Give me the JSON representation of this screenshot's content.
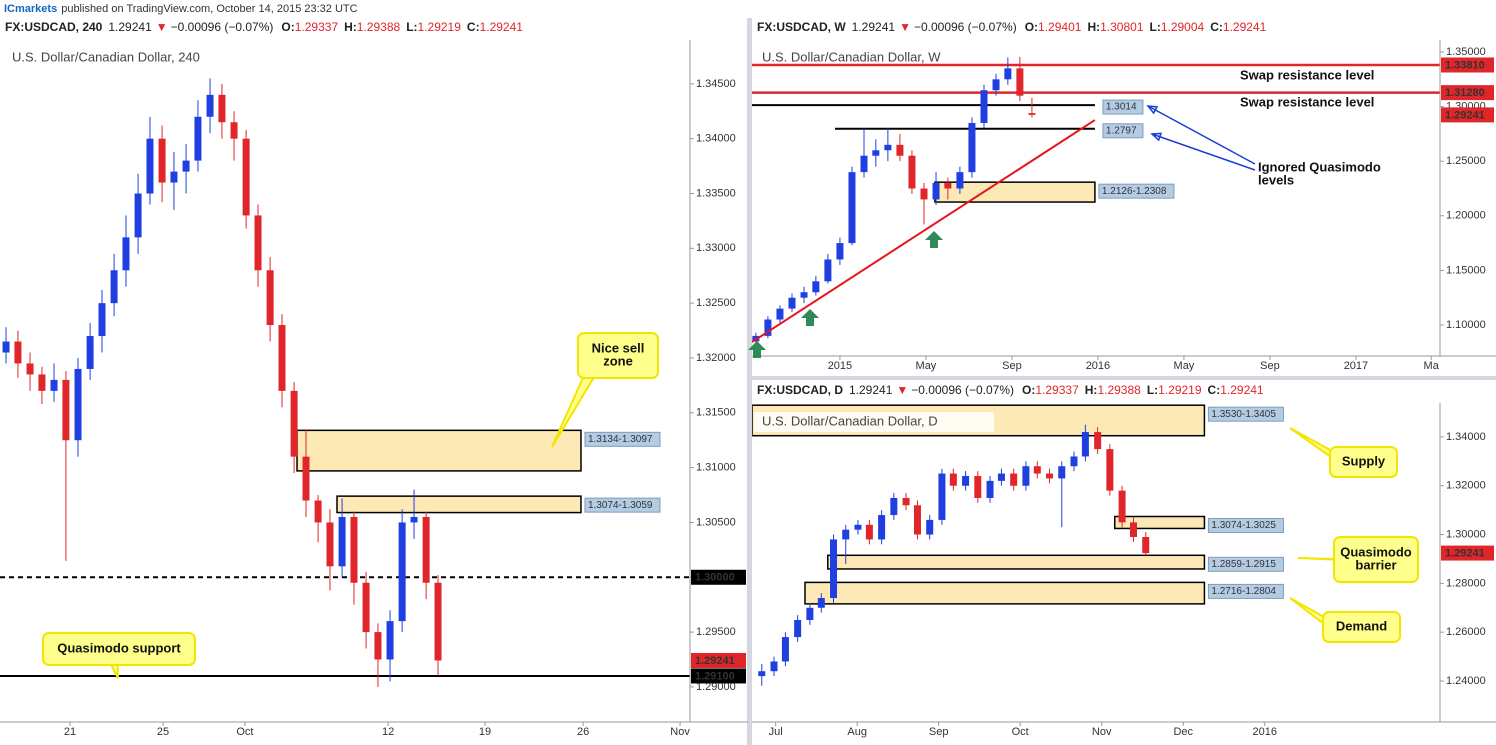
{
  "header": {
    "publisher": "ICmarkets",
    "text": "published on TradingView.com, October 14, 2015 23:32 UTC"
  },
  "chart_data": [
    {
      "type": "candlestick",
      "title": "U.S. Dollar/Canadian Dollar, 240",
      "symbol": "FX:USDCAD, 240",
      "last": "1.29241",
      "change_arrow": "▼",
      "change": "−0.00096 (−0.07%)",
      "ohlc_labels": [
        "O:",
        "H:",
        "L:",
        "C:"
      ],
      "ohlc_values": [
        "1.29337",
        "1.29388",
        "1.29219",
        "1.29241"
      ],
      "up_color": "#1f3fe0",
      "down_color": "#e0262a",
      "x": [
        0.31,
        0.92,
        1.54,
        2.15,
        2.77,
        3.38,
        4.0,
        4.62,
        5.23,
        5.85,
        6.46,
        7.08,
        7.69,
        8.31,
        8.92,
        9.54,
        10.15,
        10.77,
        11.38,
        12.0,
        12.62,
        13.23,
        13.85,
        14.46,
        15.08,
        15.69,
        16.31,
        16.92,
        17.54,
        18.15,
        18.77,
        19.38,
        20.0,
        20.62,
        21.23,
        21.85,
        22.46
      ],
      "open": [
        1.3205,
        1.3215,
        1.3195,
        1.3185,
        1.317,
        1.318,
        1.3125,
        1.319,
        1.322,
        1.325,
        1.328,
        1.331,
        1.335,
        1.34,
        1.336,
        1.337,
        1.338,
        1.342,
        1.344,
        1.3415,
        1.34,
        1.333,
        1.328,
        1.323,
        1.317,
        1.311,
        1.307,
        1.305,
        1.301,
        1.3055,
        1.2995,
        1.295,
        1.2925,
        1.296,
        1.305,
        1.3055,
        1.2995
      ],
      "high": [
        1.3228,
        1.3225,
        1.3205,
        1.3192,
        1.3195,
        1.3188,
        1.32,
        1.3232,
        1.3262,
        1.3295,
        1.333,
        1.3368,
        1.342,
        1.3412,
        1.3388,
        1.3395,
        1.3435,
        1.3455,
        1.345,
        1.3425,
        1.3408,
        1.334,
        1.3292,
        1.324,
        1.3178,
        1.3135,
        1.3075,
        1.3062,
        1.3072,
        1.306,
        1.3005,
        1.2958,
        1.297,
        1.3062,
        1.308,
        1.306,
        1.3002
      ],
      "low": [
        1.3195,
        1.3182,
        1.317,
        1.3158,
        1.316,
        1.3015,
        1.311,
        1.318,
        1.3205,
        1.3238,
        1.3265,
        1.3295,
        1.334,
        1.3342,
        1.3335,
        1.335,
        1.337,
        1.3405,
        1.34,
        1.338,
        1.3318,
        1.3265,
        1.3215,
        1.3155,
        1.3095,
        1.3055,
        1.3032,
        1.2988,
        1.3,
        1.2975,
        1.2935,
        1.29,
        1.2905,
        1.295,
        1.3035,
        1.298,
        1.291
      ],
      "close": [
        1.3215,
        1.3195,
        1.3185,
        1.317,
        1.318,
        1.3125,
        1.319,
        1.322,
        1.325,
        1.328,
        1.331,
        1.335,
        1.34,
        1.336,
        1.337,
        1.338,
        1.342,
        1.344,
        1.3415,
        1.34,
        1.333,
        1.328,
        1.323,
        1.317,
        1.311,
        1.307,
        1.305,
        1.301,
        1.3055,
        1.2995,
        1.295,
        1.2925,
        1.296,
        1.305,
        1.3055,
        1.2995,
        1.29241
      ],
      "xlim": [
        0,
        35.38
      ],
      "xticks": [
        {
          "value": 3.59,
          "label": "21"
        },
        {
          "value": 8.36,
          "label": "25"
        },
        {
          "value": 12.56,
          "label": "Oct"
        },
        {
          "value": 19.9,
          "label": "12"
        },
        {
          "value": 24.87,
          "label": "19"
        },
        {
          "value": 29.9,
          "label": "26"
        },
        {
          "value": 34.87,
          "label": "Nov"
        }
      ],
      "ylim": [
        1.2868,
        1.349
      ],
      "yticks": [
        {
          "value": 1.345,
          "label": "1.34500"
        },
        {
          "value": 1.34,
          "label": "1.34000"
        },
        {
          "value": 1.335,
          "label": "1.33500"
        },
        {
          "value": 1.33,
          "label": "1.33000"
        },
        {
          "value": 1.325,
          "label": "1.32500"
        },
        {
          "value": 1.32,
          "label": "1.32000"
        },
        {
          "value": 1.315,
          "label": "1.31500"
        },
        {
          "value": 1.31,
          "label": "1.31000"
        },
        {
          "value": 1.305,
          "label": "1.30500"
        },
        {
          "value": 1.3,
          "label": "1.30000"
        },
        {
          "value": 1.295,
          "label": "1.29500"
        },
        {
          "value": 1.29,
          "label": "1.29000"
        }
      ],
      "grid": false,
      "zones": [
        {
          "high": 1.3134,
          "low": 1.3097,
          "x": [
            15.23,
            29.79
          ],
          "label": "1.3134-1.3097"
        },
        {
          "high": 1.3074,
          "low": 1.3059,
          "x": [
            17.28,
            29.79
          ],
          "label": "1.3074-1.3059"
        }
      ],
      "lines": [
        {
          "value": 1.3,
          "color": "#000000",
          "dashed": true
        },
        {
          "value": 1.291,
          "color": "#000000",
          "dashed": false
        }
      ],
      "price_tags": [
        {
          "value": 1.3,
          "label": "1.30000",
          "color": "#000000"
        },
        {
          "value": 1.29241,
          "label": "1.29241",
          "color": "#e0262a"
        },
        {
          "value": 1.291,
          "label": "1.29100",
          "color": "#000000"
        }
      ],
      "annotations": [
        {
          "style": "callout",
          "lines": [
            "Nice sell",
            "zone"
          ]
        },
        {
          "style": "callout",
          "lines": [
            "Quasimodo support"
          ]
        }
      ]
    },
    {
      "type": "candlestick",
      "title": "U.S. Dollar/Canadian Dollar, W",
      "symbol": "FX:USDCAD, W",
      "last": "1.29241",
      "change_arrow": "▼",
      "change": "−0.00096 (−0.07%)",
      "ohlc_labels": [
        "O:",
        "H:",
        "L:",
        "C:"
      ],
      "ohlc_values": [
        "1.29401",
        "1.30801",
        "1.29004",
        "1.29241"
      ],
      "up_color": "#1f3fe0",
      "down_color": "#e0262a",
      "x": [
        -3.91,
        -3.35,
        -2.79,
        -2.23,
        -1.67,
        -1.12,
        -0.56,
        0,
        0.56,
        1.12,
        1.67,
        2.23,
        2.79,
        3.35,
        3.91,
        4.47,
        5.02,
        5.58,
        6.14,
        6.7,
        7.26,
        7.81,
        8.37,
        8.93
      ],
      "open": [
        1.085,
        1.09,
        1.105,
        1.115,
        1.125,
        1.13,
        1.14,
        1.16,
        1.175,
        1.24,
        1.255,
        1.26,
        1.265,
        1.255,
        1.225,
        1.215,
        1.23,
        1.225,
        1.24,
        1.285,
        1.315,
        1.325,
        1.335,
        1.29401
      ],
      "high": [
        1.093,
        1.108,
        1.118,
        1.129,
        1.135,
        1.145,
        1.165,
        1.18,
        1.245,
        1.28,
        1.27,
        1.28,
        1.275,
        1.26,
        1.23,
        1.24,
        1.235,
        1.245,
        1.29,
        1.32,
        1.33,
        1.345,
        1.3456,
        1.30801
      ],
      "low": [
        1.082,
        1.088,
        1.102,
        1.112,
        1.12,
        1.127,
        1.138,
        1.155,
        1.173,
        1.235,
        1.245,
        1.25,
        1.25,
        1.22,
        1.192,
        1.21,
        1.215,
        1.22,
        1.235,
        1.28,
        1.31,
        1.32,
        1.305,
        1.29004
      ],
      "close": [
        1.09,
        1.105,
        1.115,
        1.125,
        1.13,
        1.14,
        1.16,
        1.175,
        1.24,
        1.255,
        1.26,
        1.265,
        1.255,
        1.225,
        1.215,
        1.23,
        1.225,
        1.24,
        1.285,
        1.315,
        1.325,
        1.335,
        1.31,
        1.29241
      ],
      "xlim": [
        -4.09,
        27.91
      ],
      "xticks": [
        {
          "value": 0,
          "label": "2015"
        },
        {
          "value": 4,
          "label": "May"
        },
        {
          "value": 8,
          "label": "Sep"
        },
        {
          "value": 12,
          "label": "2016"
        },
        {
          "value": 16,
          "label": "May"
        },
        {
          "value": 20,
          "label": "Sep"
        },
        {
          "value": 24,
          "label": "2017"
        },
        {
          "value": 27.5,
          "label": "Ma"
        }
      ],
      "ylim": [
        1.0716,
        1.361
      ],
      "yticks": [
        {
          "value": 1.35,
          "label": "1.35000"
        },
        {
          "value": 1.3,
          "label": "1.30000"
        },
        {
          "value": 1.25,
          "label": "1.25000"
        },
        {
          "value": 1.2,
          "label": "1.20000"
        },
        {
          "value": 1.15,
          "label": "1.15000"
        },
        {
          "value": 1.1,
          "label": "1.10000"
        }
      ],
      "grid": false,
      "zones": [
        {
          "high": 1.2308,
          "low": 1.2126,
          "x": [
            4.42,
            11.86
          ],
          "label": "1.2126-1.2308"
        }
      ],
      "lines": [
        {
          "value": 1.3381,
          "color": "#e0262a",
          "dashed": false
        },
        {
          "value": 1.3128,
          "color": "#e0262a",
          "dashed": false
        },
        {
          "value": 1.3014,
          "color": "#000000",
          "dashed": false,
          "x": [
            -4.09,
            11.86
          ],
          "label": "1.3014"
        },
        {
          "value": 1.2797,
          "color": "#000000",
          "dashed": false,
          "x": [
            -0.23,
            11.86
          ],
          "label": "1.2797"
        }
      ],
      "trendline": {
        "x": [
          -4.09,
          11.86
        ],
        "y": [
          1.0844,
          1.2877
        ],
        "color": "#e8161b"
      },
      "price_tags": [
        {
          "value": 1.3381,
          "label": "1.33810",
          "color": "#e0262a"
        },
        {
          "value": 1.3128,
          "label": "1.31280",
          "color": "#e0262a"
        },
        {
          "value": 1.29241,
          "label": "1.29241",
          "color": "#e0262a"
        }
      ],
      "annotations": [
        {
          "style": "text",
          "lines": [
            "Swap resistance level"
          ]
        },
        {
          "style": "text",
          "lines": [
            "Swap resistance level"
          ]
        },
        {
          "style": "text",
          "lines": [
            "Ignored Quasimodo",
            "levels"
          ]
        }
      ]
    },
    {
      "type": "candlestick",
      "title": "U.S. Dollar/Canadian Dollar, D",
      "symbol": "FX:USDCAD, D",
      "last": "1.29241",
      "change_arrow": "▼",
      "change": "−0.00096 (−0.07%)",
      "ohlc_labels": [
        "O:",
        "H:",
        "L:",
        "C:"
      ],
      "ohlc_values": [
        "1.29337",
        "1.29388",
        "1.29219",
        "1.29241"
      ],
      "up_color": "#1f3fe0",
      "down_color": "#e0262a",
      "x": [
        -0.17,
        -0.02,
        0.12,
        0.27,
        0.42,
        0.56,
        0.71,
        0.86,
        1.01,
        1.15,
        1.3,
        1.45,
        1.6,
        1.74,
        1.89,
        2.04,
        2.18,
        2.33,
        2.48,
        2.63,
        2.77,
        2.92,
        3.07,
        3.21,
        3.36,
        3.51,
        3.66,
        3.8,
        3.95,
        4.1,
        4.25,
        4.39,
        4.54
      ],
      "open": [
        1.242,
        1.244,
        1.248,
        1.258,
        1.265,
        1.27,
        1.274,
        1.298,
        1.302,
        1.304,
        1.298,
        1.308,
        1.315,
        1.312,
        1.3,
        1.306,
        1.325,
        1.32,
        1.324,
        1.315,
        1.322,
        1.325,
        1.32,
        1.328,
        1.325,
        1.323,
        1.328,
        1.332,
        1.342,
        1.335,
        1.318,
        1.305,
        1.299
      ],
      "high": [
        1.247,
        1.25,
        1.26,
        1.267,
        1.272,
        1.276,
        1.3,
        1.304,
        1.306,
        1.306,
        1.31,
        1.317,
        1.317,
        1.314,
        1.308,
        1.327,
        1.327,
        1.326,
        1.326,
        1.324,
        1.327,
        1.327,
        1.33,
        1.33,
        1.327,
        1.33,
        1.334,
        1.345,
        1.344,
        1.337,
        1.32,
        1.3074,
        1.301
      ],
      "low": [
        1.238,
        1.242,
        1.246,
        1.256,
        1.263,
        1.268,
        1.272,
        1.288,
        1.3,
        1.296,
        1.296,
        1.306,
        1.31,
        1.298,
        1.298,
        1.304,
        1.318,
        1.318,
        1.313,
        1.313,
        1.32,
        1.318,
        1.318,
        1.323,
        1.321,
        1.303,
        1.326,
        1.33,
        1.333,
        1.316,
        1.303,
        1.297,
        1.2915
      ],
      "close": [
        1.244,
        1.248,
        1.258,
        1.265,
        1.27,
        1.274,
        1.298,
        1.302,
        1.304,
        1.298,
        1.308,
        1.315,
        1.312,
        1.3,
        1.306,
        1.325,
        1.32,
        1.324,
        1.315,
        1.322,
        1.325,
        1.32,
        1.328,
        1.325,
        1.323,
        1.328,
        1.332,
        1.342,
        1.335,
        1.318,
        1.305,
        1.299,
        1.29241
      ],
      "xlim": [
        -0.29,
        8.15
      ],
      "xticks": [
        {
          "value": 0,
          "label": "Jul"
        },
        {
          "value": 1,
          "label": "Aug"
        },
        {
          "value": 2,
          "label": "Sep"
        },
        {
          "value": 3,
          "label": "Oct"
        },
        {
          "value": 4,
          "label": "Nov"
        },
        {
          "value": 5,
          "label": "Dec"
        },
        {
          "value": 6,
          "label": "2016"
        }
      ],
      "ylim": [
        1.2232,
        1.3539
      ],
      "yticks": [
        {
          "value": 1.34,
          "label": "1.34000"
        },
        {
          "value": 1.32,
          "label": "1.32000"
        },
        {
          "value": 1.3,
          "label": "1.30000"
        },
        {
          "value": 1.28,
          "label": "1.28000"
        },
        {
          "value": 1.26,
          "label": "1.26000"
        },
        {
          "value": 1.24,
          "label": "1.24000"
        }
      ],
      "grid": false,
      "zones": [
        {
          "high": 1.353,
          "low": 1.3405,
          "x": [
            -0.29,
            5.26
          ],
          "label": "1.3530-1.3405"
        },
        {
          "high": 1.3074,
          "low": 1.3025,
          "x": [
            4.16,
            5.26
          ],
          "label": "1.3074-1.3025"
        },
        {
          "high": 1.2915,
          "low": 1.2859,
          "x": [
            0.64,
            5.26
          ],
          "label": "1.2859-1.2915"
        },
        {
          "high": 1.2804,
          "low": 1.2716,
          "x": [
            0.36,
            5.26
          ],
          "label": "1.2716-1.2804"
        }
      ],
      "lines": [],
      "price_tags": [
        {
          "value": 1.29241,
          "label": "1.29241",
          "color": "#e0262a"
        }
      ],
      "annotations": [
        {
          "style": "callout",
          "lines": [
            "Supply"
          ]
        },
        {
          "style": "callout",
          "lines": [
            "Quasimodo",
            "barrier"
          ]
        },
        {
          "style": "callout",
          "lines": [
            "Demand"
          ]
        }
      ]
    }
  ]
}
